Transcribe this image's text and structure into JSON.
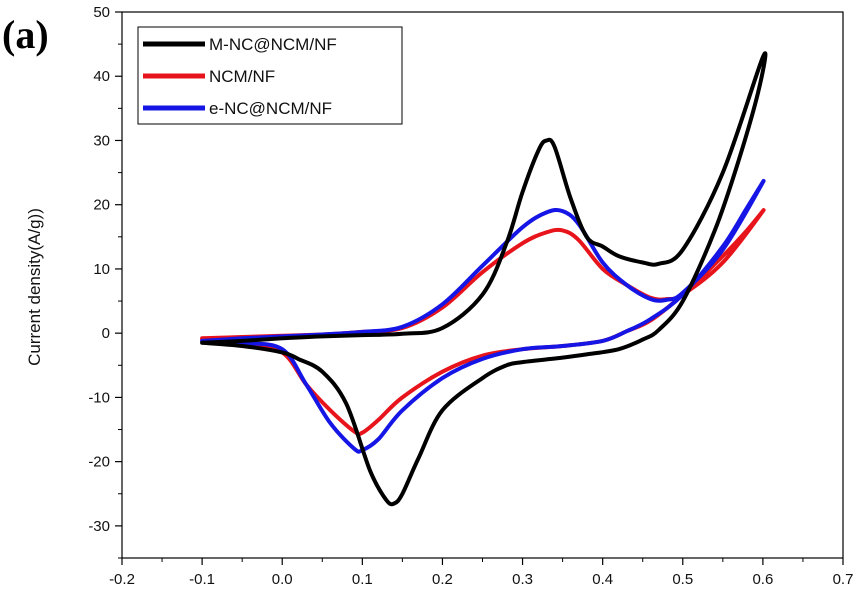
{
  "panel_label": "(a)",
  "chart_data": {
    "type": "line",
    "title": "",
    "xlabel": "",
    "ylabel": "Current density(A/g))",
    "xlim": [
      -0.2,
      0.7
    ],
    "ylim": [
      -35,
      50
    ],
    "xticks": [
      "-0.2",
      "-0.1",
      "0.0",
      "0.1",
      "0.2",
      "0.3",
      "0.4",
      "0.5",
      "0.6",
      "0.7"
    ],
    "yticks": [
      "-30",
      "-20",
      "-10",
      "0",
      "10",
      "20",
      "30",
      "40",
      "50"
    ],
    "grid": false,
    "legend_position": "top-left",
    "series": [
      {
        "name": "M-NC@NCM/NF",
        "color": "#000000",
        "x": [
          -0.1,
          -0.05,
          0.0,
          0.05,
          0.1,
          0.15,
          0.2,
          0.25,
          0.28,
          0.3,
          0.32,
          0.33,
          0.34,
          0.36,
          0.38,
          0.4,
          0.42,
          0.45,
          0.47,
          0.5,
          0.55,
          0.6,
          0.595,
          0.57,
          0.54,
          0.5,
          0.47,
          0.45,
          0.42,
          0.38,
          0.35,
          0.3,
          0.28,
          0.25,
          0.2,
          0.17,
          0.15,
          0.14,
          0.13,
          0.11,
          0.08,
          0.05,
          0.02,
          0.0,
          -0.05,
          -0.1
        ],
        "y": [
          -1.5,
          -1.2,
          -0.8,
          -0.5,
          -0.3,
          -0.1,
          0.8,
          6,
          14,
          22,
          28.5,
          30,
          29,
          21,
          15,
          13.5,
          12,
          11,
          10.8,
          13,
          25,
          43,
          38,
          27,
          16,
          5,
          0.5,
          -1,
          -2.5,
          -3.3,
          -3.8,
          -4.5,
          -5,
          -7,
          -12,
          -19.5,
          -25,
          -26.5,
          -26,
          -21.5,
          -11,
          -6,
          -4,
          -3,
          -2,
          -1.5
        ]
      },
      {
        "name": "NCM/NF",
        "color": "#e8141c",
        "x": [
          -0.1,
          -0.05,
          0.0,
          0.05,
          0.1,
          0.15,
          0.2,
          0.25,
          0.3,
          0.33,
          0.35,
          0.37,
          0.4,
          0.43,
          0.46,
          0.48,
          0.5,
          0.55,
          0.6,
          0.58,
          0.55,
          0.5,
          0.46,
          0.43,
          0.4,
          0.35,
          0.3,
          0.25,
          0.2,
          0.15,
          0.12,
          0.1,
          0.09,
          0.06,
          0.03,
          0.0,
          -0.05,
          -0.1
        ],
        "y": [
          -0.8,
          -0.6,
          -0.4,
          -0.2,
          0.2,
          0.8,
          4,
          9.5,
          14,
          15.7,
          16,
          14.5,
          10,
          7.5,
          5.5,
          5.3,
          6,
          11,
          19,
          16,
          12,
          6,
          2,
          0.3,
          -1.2,
          -2,
          -2.5,
          -3.5,
          -6,
          -10,
          -13.5,
          -15.5,
          -15.3,
          -12,
          -8,
          -3,
          -1.5,
          -1
        ]
      },
      {
        "name": "e-NC@NCM/NF",
        "color": "#1515e6",
        "x": [
          -0.1,
          -0.05,
          0.0,
          0.05,
          0.1,
          0.15,
          0.2,
          0.25,
          0.3,
          0.33,
          0.35,
          0.37,
          0.4,
          0.43,
          0.46,
          0.48,
          0.5,
          0.55,
          0.6,
          0.58,
          0.55,
          0.5,
          0.46,
          0.43,
          0.4,
          0.35,
          0.3,
          0.25,
          0.2,
          0.15,
          0.12,
          0.1,
          0.09,
          0.06,
          0.03,
          0.0,
          -0.05,
          -0.1
        ],
        "y": [
          -1.2,
          -0.8,
          -0.5,
          -0.2,
          0.2,
          1,
          4.5,
          10.5,
          16.5,
          18.8,
          19,
          17,
          11,
          7.5,
          5.3,
          5.2,
          6.3,
          13,
          23.5,
          19.5,
          13.5,
          6,
          2.2,
          0.3,
          -1.2,
          -2,
          -2.5,
          -4,
          -7,
          -12,
          -16.5,
          -18.2,
          -18,
          -14,
          -8,
          -2.5,
          -1.5,
          -1.2
        ]
      }
    ]
  }
}
